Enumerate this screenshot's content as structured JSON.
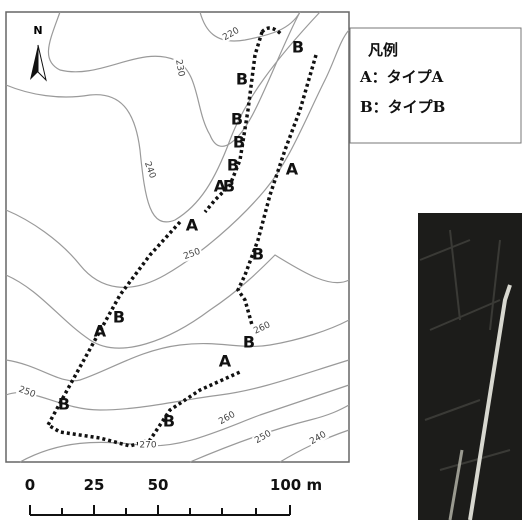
{
  "map": {
    "north": "N",
    "contour_labels": [
      "220",
      "230",
      "240",
      "250",
      "260",
      "250",
      "270",
      "260",
      "250",
      "240"
    ],
    "point_labels": [
      "B",
      "B",
      "B",
      "B",
      "B",
      "B",
      "A",
      "A",
      "A",
      "B",
      "B",
      "A",
      "B",
      "A",
      "B",
      "B"
    ]
  },
  "legend": {
    "title": "凡例",
    "items": [
      "A：タイプA",
      "B：タイプB"
    ]
  },
  "scale": {
    "labels": [
      "0",
      "25",
      "50",
      "100 m"
    ]
  }
}
